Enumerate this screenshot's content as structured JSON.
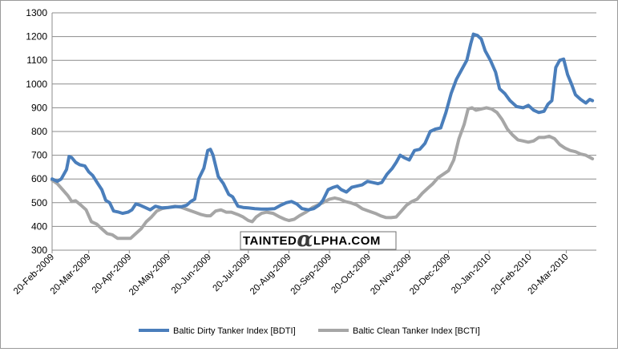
{
  "chart_data": {
    "type": "line",
    "title": "",
    "xlabel": "",
    "ylabel": "",
    "ylim": [
      300,
      1300
    ],
    "y_ticks": [
      300,
      400,
      500,
      600,
      700,
      800,
      900,
      1000,
      1100,
      1200,
      1300
    ],
    "x_range": [
      "2009-02-20",
      "2010-04-12"
    ],
    "x_ticks": [
      {
        "date": "2009-02-20",
        "label": "20-Feb-2009"
      },
      {
        "date": "2009-03-20",
        "label": "20-Mar-2009"
      },
      {
        "date": "2009-04-20",
        "label": "20-Apr-2009"
      },
      {
        "date": "2009-05-20",
        "label": "20-May-2009"
      },
      {
        "date": "2009-06-20",
        "label": "20-Jun-2009"
      },
      {
        "date": "2009-07-20",
        "label": "20-Jul-2009"
      },
      {
        "date": "2009-08-20",
        "label": "20-Aug-2009"
      },
      {
        "date": "2009-09-20",
        "label": "20-Sep-2009"
      },
      {
        "date": "2009-10-20",
        "label": "20-Oct-2009"
      },
      {
        "date": "2009-11-20",
        "label": "20-Nov-2009"
      },
      {
        "date": "2009-12-20",
        "label": "20-Dec-2009"
      },
      {
        "date": "2010-01-20",
        "label": "20-Jan-2010"
      },
      {
        "date": "2010-02-20",
        "label": "20-Feb-2010"
      },
      {
        "date": "2010-03-20",
        "label": "20-Mar-2010"
      }
    ],
    "grid": {
      "horizontal": true,
      "vertical": false
    },
    "legend_position": "bottom",
    "series": [
      {
        "name": "Baltic Dirty Tanker Index [BDTI]",
        "color": "#4a7ebb",
        "points": [
          [
            "2009-02-20",
            600
          ],
          [
            "2009-02-24",
            590
          ],
          [
            "2009-02-27",
            600
          ],
          [
            "2009-03-03",
            640
          ],
          [
            "2009-03-05",
            695
          ],
          [
            "2009-03-07",
            690
          ],
          [
            "2009-03-10",
            670
          ],
          [
            "2009-03-13",
            660
          ],
          [
            "2009-03-17",
            655
          ],
          [
            "2009-03-20",
            630
          ],
          [
            "2009-03-23",
            615
          ],
          [
            "2009-03-27",
            580
          ],
          [
            "2009-03-30",
            555
          ],
          [
            "2009-04-02",
            510
          ],
          [
            "2009-04-05",
            500
          ],
          [
            "2009-04-08",
            465
          ],
          [
            "2009-04-12",
            460
          ],
          [
            "2009-04-15",
            455
          ],
          [
            "2009-04-19",
            460
          ],
          [
            "2009-04-22",
            470
          ],
          [
            "2009-04-25",
            495
          ],
          [
            "2009-04-28",
            490
          ],
          [
            "2009-05-02",
            480
          ],
          [
            "2009-05-06",
            470
          ],
          [
            "2009-05-10",
            485
          ],
          [
            "2009-05-15",
            478
          ],
          [
            "2009-05-20",
            480
          ],
          [
            "2009-05-25",
            483
          ],
          [
            "2009-05-30",
            483
          ],
          [
            "2009-06-03",
            490
          ],
          [
            "2009-06-06",
            505
          ],
          [
            "2009-06-09",
            515
          ],
          [
            "2009-06-12",
            600
          ],
          [
            "2009-06-16",
            645
          ],
          [
            "2009-06-19",
            720
          ],
          [
            "2009-06-21",
            725
          ],
          [
            "2009-06-23",
            700
          ],
          [
            "2009-06-27",
            610
          ],
          [
            "2009-07-01",
            580
          ],
          [
            "2009-07-05",
            535
          ],
          [
            "2009-07-08",
            525
          ],
          [
            "2009-07-12",
            485
          ],
          [
            "2009-07-16",
            480
          ],
          [
            "2009-07-20",
            478
          ],
          [
            "2009-07-25",
            475
          ],
          [
            "2009-07-30",
            473
          ],
          [
            "2009-08-04",
            473
          ],
          [
            "2009-08-09",
            475
          ],
          [
            "2009-08-14",
            490
          ],
          [
            "2009-08-18",
            500
          ],
          [
            "2009-08-22",
            505
          ],
          [
            "2009-08-26",
            495
          ],
          [
            "2009-08-30",
            475
          ],
          [
            "2009-09-04",
            470
          ],
          [
            "2009-09-08",
            475
          ],
          [
            "2009-09-12",
            490
          ],
          [
            "2009-09-15",
            510
          ],
          [
            "2009-09-19",
            555
          ],
          [
            "2009-09-23",
            565
          ],
          [
            "2009-09-26",
            570
          ],
          [
            "2009-09-29",
            555
          ],
          [
            "2009-10-03",
            545
          ],
          [
            "2009-10-07",
            565
          ],
          [
            "2009-10-11",
            570
          ],
          [
            "2009-10-15",
            575
          ],
          [
            "2009-10-19",
            590
          ],
          [
            "2009-10-23",
            585
          ],
          [
            "2009-10-27",
            580
          ],
          [
            "2009-10-30",
            585
          ],
          [
            "2009-11-03",
            620
          ],
          [
            "2009-11-07",
            645
          ],
          [
            "2009-11-10",
            670
          ],
          [
            "2009-11-13",
            700
          ],
          [
            "2009-11-16",
            690
          ],
          [
            "2009-11-20",
            680
          ],
          [
            "2009-11-24",
            720
          ],
          [
            "2009-11-28",
            725
          ],
          [
            "2009-12-02",
            750
          ],
          [
            "2009-12-06",
            800
          ],
          [
            "2009-12-10",
            810
          ],
          [
            "2009-12-14",
            815
          ],
          [
            "2009-12-18",
            880
          ],
          [
            "2009-12-22",
            960
          ],
          [
            "2009-12-26",
            1020
          ],
          [
            "2009-12-30",
            1060
          ],
          [
            "2010-01-03",
            1100
          ],
          [
            "2010-01-06",
            1170
          ],
          [
            "2010-01-08",
            1210
          ],
          [
            "2010-01-11",
            1205
          ],
          [
            "2010-01-14",
            1190
          ],
          [
            "2010-01-17",
            1140
          ],
          [
            "2010-01-21",
            1100
          ],
          [
            "2010-01-25",
            1050
          ],
          [
            "2010-01-28",
            980
          ],
          [
            "2010-02-01",
            960
          ],
          [
            "2010-02-05",
            930
          ],
          [
            "2010-02-10",
            905
          ],
          [
            "2010-02-15",
            900
          ],
          [
            "2010-02-19",
            910
          ],
          [
            "2010-02-23",
            890
          ],
          [
            "2010-02-27",
            880
          ],
          [
            "2010-03-03",
            885
          ],
          [
            "2010-03-06",
            915
          ],
          [
            "2010-03-09",
            930
          ],
          [
            "2010-03-12",
            1070
          ],
          [
            "2010-03-15",
            1100
          ],
          [
            "2010-03-18",
            1105
          ],
          [
            "2010-03-21",
            1040
          ],
          [
            "2010-03-24",
            1000
          ],
          [
            "2010-03-27",
            955
          ],
          [
            "2010-03-31",
            935
          ],
          [
            "2010-04-04",
            920
          ],
          [
            "2010-04-07",
            935
          ],
          [
            "2010-04-09",
            930
          ]
        ]
      },
      {
        "name": "Baltic Clean Tanker Index [BCTI]",
        "color": "#a6a6a6",
        "points": [
          [
            "2009-02-20",
            595
          ],
          [
            "2009-02-24",
            580
          ],
          [
            "2009-02-28",
            555
          ],
          [
            "2009-03-04",
            530
          ],
          [
            "2009-03-07",
            505
          ],
          [
            "2009-03-10",
            508
          ],
          [
            "2009-03-14",
            490
          ],
          [
            "2009-03-18",
            470
          ],
          [
            "2009-03-22",
            420
          ],
          [
            "2009-03-26",
            410
          ],
          [
            "2009-03-30",
            390
          ],
          [
            "2009-04-03",
            370
          ],
          [
            "2009-04-07",
            365
          ],
          [
            "2009-04-11",
            350
          ],
          [
            "2009-04-16",
            350
          ],
          [
            "2009-04-21",
            350
          ],
          [
            "2009-04-25",
            370
          ],
          [
            "2009-04-29",
            390
          ],
          [
            "2009-05-03",
            420
          ],
          [
            "2009-05-07",
            440
          ],
          [
            "2009-05-11",
            465
          ],
          [
            "2009-05-15",
            475
          ],
          [
            "2009-05-20",
            480
          ],
          [
            "2009-05-25",
            485
          ],
          [
            "2009-05-30",
            480
          ],
          [
            "2009-06-04",
            470
          ],
          [
            "2009-06-09",
            460
          ],
          [
            "2009-06-14",
            450
          ],
          [
            "2009-06-18",
            445
          ],
          [
            "2009-06-21",
            445
          ],
          [
            "2009-06-25",
            465
          ],
          [
            "2009-06-29",
            470
          ],
          [
            "2009-07-03",
            460
          ],
          [
            "2009-07-07",
            460
          ],
          [
            "2009-07-12",
            450
          ],
          [
            "2009-07-16",
            440
          ],
          [
            "2009-07-20",
            425
          ],
          [
            "2009-07-23",
            420
          ],
          [
            "2009-07-26",
            440
          ],
          [
            "2009-07-30",
            455
          ],
          [
            "2009-08-03",
            460
          ],
          [
            "2009-08-08",
            455
          ],
          [
            "2009-08-13",
            440
          ],
          [
            "2009-08-17",
            430
          ],
          [
            "2009-08-20",
            425
          ],
          [
            "2009-08-24",
            430
          ],
          [
            "2009-08-28",
            445
          ],
          [
            "2009-09-02",
            460
          ],
          [
            "2009-09-07",
            480
          ],
          [
            "2009-09-11",
            490
          ],
          [
            "2009-09-15",
            500
          ],
          [
            "2009-09-20",
            515
          ],
          [
            "2009-09-24",
            520
          ],
          [
            "2009-09-28",
            515
          ],
          [
            "2009-10-02",
            505
          ],
          [
            "2009-10-06",
            500
          ],
          [
            "2009-10-11",
            490
          ],
          [
            "2009-10-15",
            475
          ],
          [
            "2009-10-20",
            465
          ],
          [
            "2009-10-25",
            455
          ],
          [
            "2009-10-29",
            445
          ],
          [
            "2009-11-02",
            438
          ],
          [
            "2009-11-06",
            437
          ],
          [
            "2009-11-10",
            440
          ],
          [
            "2009-11-14",
            465
          ],
          [
            "2009-11-18",
            490
          ],
          [
            "2009-11-22",
            505
          ],
          [
            "2009-11-26",
            515
          ],
          [
            "2009-11-30",
            540
          ],
          [
            "2009-12-04",
            560
          ],
          [
            "2009-12-08",
            580
          ],
          [
            "2009-12-12",
            605
          ],
          [
            "2009-12-16",
            620
          ],
          [
            "2009-12-20",
            635
          ],
          [
            "2009-12-24",
            680
          ],
          [
            "2009-12-28",
            770
          ],
          [
            "2010-01-01",
            830
          ],
          [
            "2010-01-04",
            895
          ],
          [
            "2010-01-07",
            900
          ],
          [
            "2010-01-10",
            890
          ],
          [
            "2010-01-14",
            895
          ],
          [
            "2010-01-18",
            900
          ],
          [
            "2010-01-22",
            895
          ],
          [
            "2010-01-26",
            880
          ],
          [
            "2010-01-30",
            850
          ],
          [
            "2010-02-03",
            810
          ],
          [
            "2010-02-07",
            785
          ],
          [
            "2010-02-11",
            765
          ],
          [
            "2010-02-15",
            760
          ],
          [
            "2010-02-19",
            755
          ],
          [
            "2010-02-23",
            760
          ],
          [
            "2010-02-27",
            775
          ],
          [
            "2010-03-03",
            775
          ],
          [
            "2010-03-07",
            780
          ],
          [
            "2010-03-11",
            770
          ],
          [
            "2010-03-15",
            745
          ],
          [
            "2010-03-19",
            730
          ],
          [
            "2010-03-23",
            720
          ],
          [
            "2010-03-27",
            715
          ],
          [
            "2010-03-31",
            705
          ],
          [
            "2010-04-04",
            700
          ],
          [
            "2010-04-09",
            685
          ]
        ]
      }
    ],
    "watermark": {
      "before": "TAINTED",
      "alpha": "α",
      "after": "LPHA.COM"
    }
  }
}
